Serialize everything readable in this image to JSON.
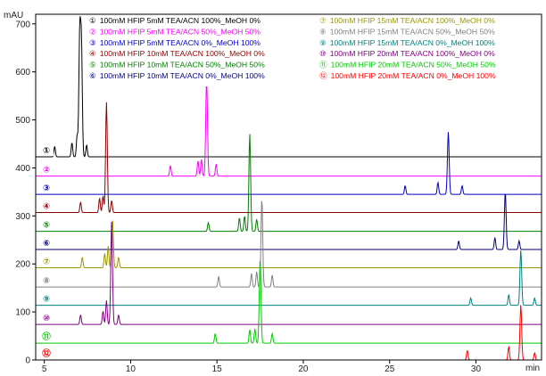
{
  "chart_data": {
    "type": "line",
    "ylabel": "mAU",
    "xlabel": "min",
    "xlim": [
      4.5,
      33.8
    ],
    "ylim": [
      0,
      720
    ],
    "xticks": [
      5,
      10,
      15,
      20,
      25,
      30
    ],
    "yticks": [
      0,
      100,
      200,
      300,
      400,
      500,
      600,
      700
    ],
    "series": [
      {
        "marker": "①",
        "name": "100mM HFIP 5mM TEA/ACN 100%_MeOH 0%",
        "color": "#000000",
        "offset": 423,
        "peaks": [
          [
            5.6,
            22
          ],
          [
            6.6,
            30
          ],
          [
            6.9,
            45
          ],
          [
            7.05,
            250
          ],
          [
            7.15,
            230
          ],
          [
            7.45,
            25
          ]
        ]
      },
      {
        "marker": "②",
        "name": "100mM HFIP 5mM TEA/ACN 50%_MeOH 50%",
        "color": "#ff00ff",
        "offset": 383,
        "peaks": [
          [
            12.3,
            22
          ],
          [
            13.9,
            32
          ],
          [
            14.1,
            35
          ],
          [
            14.4,
            205
          ],
          [
            14.95,
            25
          ]
        ]
      },
      {
        "marker": "③",
        "name": "100mM HFIP 5mM TEA/ACN 0%_MeOH 100%",
        "color": "#0000cc",
        "offset": 345,
        "peaks": [
          [
            25.9,
            18
          ],
          [
            27.8,
            25
          ],
          [
            28.4,
            130
          ],
          [
            29.2,
            18
          ]
        ]
      },
      {
        "marker": "④",
        "name": "100mM HFIP 10mM TEA/ACN 100%_MeOH 0%",
        "color": "#8b0000",
        "offset": 307,
        "peaks": [
          [
            7.1,
            22
          ],
          [
            8.2,
            30
          ],
          [
            8.4,
            35
          ],
          [
            8.6,
            230
          ],
          [
            8.9,
            25
          ]
        ]
      },
      {
        "marker": "⑤",
        "name": "100mM HFIP 10mM TEA/ACN 50%_MeOH 50%",
        "color": "#008000",
        "offset": 268,
        "peaks": [
          [
            14.5,
            18
          ],
          [
            16.3,
            28
          ],
          [
            16.6,
            32
          ],
          [
            16.9,
            203
          ],
          [
            17.3,
            25
          ]
        ]
      },
      {
        "marker": "⑥",
        "name": "100mM HFIP 10mM TEA/ACN 0%_MeOH 100%",
        "color": "#000080",
        "offset": 230,
        "peaks": [
          [
            29.0,
            18
          ],
          [
            31.1,
            25
          ],
          [
            31.7,
            120
          ],
          [
            32.5,
            18
          ]
        ]
      },
      {
        "marker": "⑦",
        "name": "100mM HFIP 15mM TEA/ACN 100%_MeOH 0%",
        "color": "#999900",
        "offset": 192,
        "peaks": [
          [
            7.2,
            22
          ],
          [
            8.5,
            30
          ],
          [
            8.7,
            45
          ],
          [
            8.95,
            100
          ],
          [
            9.3,
            22
          ]
        ]
      },
      {
        "marker": "⑧",
        "name": "100mM HFIP 15mM TEA/ACN 50%_MeOH 50%",
        "color": "#808080",
        "offset": 152,
        "peaks": [
          [
            15.1,
            22
          ],
          [
            17.0,
            28
          ],
          [
            17.3,
            32
          ],
          [
            17.6,
            185
          ],
          [
            18.2,
            25
          ]
        ]
      },
      {
        "marker": "⑨",
        "name": "100mM HFIP 15mM TEA/ACN 0%_MeOH 100%",
        "color": "#008080",
        "offset": 114,
        "peaks": [
          [
            29.7,
            15
          ],
          [
            31.9,
            22
          ],
          [
            32.6,
            115
          ],
          [
            33.4,
            15
          ]
        ]
      },
      {
        "marker": "⑩",
        "name": "100mM HFIP 20mM TEA/ACN 100%_MeOH 0%",
        "color": "#800080",
        "offset": 74,
        "peaks": [
          [
            7.1,
            20
          ],
          [
            8.4,
            28
          ],
          [
            8.6,
            50
          ],
          [
            8.9,
            215
          ],
          [
            9.3,
            20
          ]
        ]
      },
      {
        "marker": "⑪",
        "name": "100mM HFIP 20mM TEA/ACN 50%_MeOH 50%",
        "color": "#00cc00",
        "offset": 35,
        "peaks": [
          [
            14.9,
            20
          ],
          [
            16.9,
            28
          ],
          [
            17.2,
            30
          ],
          [
            17.5,
            175
          ],
          [
            18.2,
            20
          ]
        ]
      },
      {
        "marker": "⑫",
        "name": "100mM HFIP 20mM TEA/ACN 0%_MeOH 100%",
        "color": "#ff0000",
        "offset": 0,
        "peaks": [
          [
            29.5,
            20
          ],
          [
            31.9,
            28
          ],
          [
            32.6,
            115
          ],
          [
            33.4,
            15
          ]
        ]
      }
    ]
  }
}
